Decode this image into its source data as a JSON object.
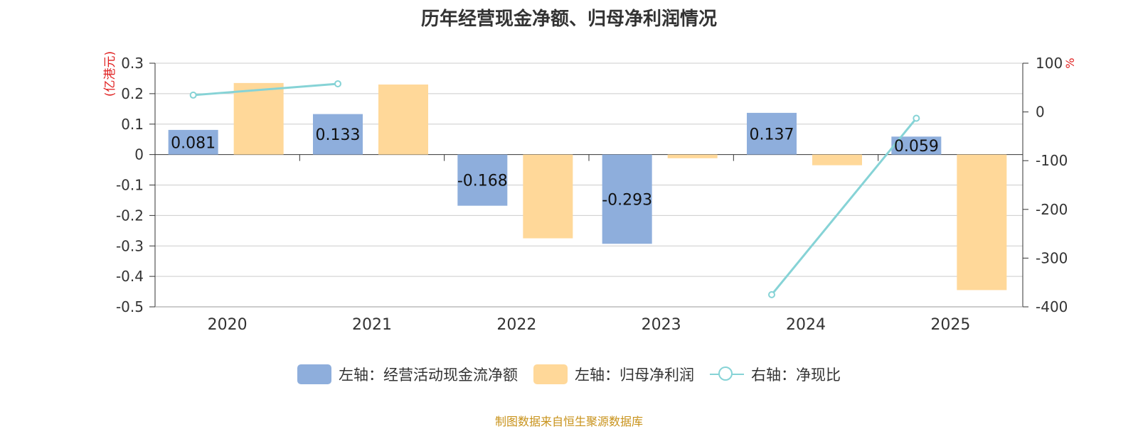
{
  "title": "历年经营现金净额、归母净利润情况",
  "source_note": "制图数据来自恒生聚源数据库",
  "legend": [
    {
      "label": "左轴：经营活动现金流净额",
      "color": "#8eaedc",
      "kind": "bar"
    },
    {
      "label": "左轴：归母净利润",
      "color": "#ffd899",
      "kind": "bar"
    },
    {
      "label": "右轴：净现比",
      "color": "#86d3d6",
      "kind": "line"
    }
  ],
  "chart_data": {
    "type": "bar",
    "categories": [
      "2020",
      "2021",
      "2022",
      "2023",
      "2024",
      "2025"
    ],
    "y_left_label": "(亿港元)",
    "y_right_label": "%",
    "y_left_ticks": [
      "0.3",
      "0.2",
      "0.1",
      "0",
      "-0.1",
      "-0.2",
      "-0.3",
      "-0.4",
      "-0.5"
    ],
    "y_right_ticks": [
      "100",
      "0",
      "-100",
      "-200",
      "-300",
      "-400"
    ],
    "ylim_left": [
      -0.5,
      0.3
    ],
    "ylim_right": [
      -400,
      100
    ],
    "grid": true,
    "legend_position": "bottom",
    "series": [
      {
        "name": "左轴：经营活动现金流净额",
        "axis": "left",
        "type": "bar",
        "color": "#8eaedc",
        "values": [
          0.081,
          0.133,
          -0.168,
          -0.293,
          0.137,
          0.059
        ],
        "labels": [
          "0.081",
          "0.133",
          "-0.168",
          "-0.293",
          "0.137",
          "0.059"
        ]
      },
      {
        "name": "左轴：归母净利润",
        "axis": "left",
        "type": "bar",
        "color": "#ffd899",
        "values": [
          0.235,
          0.23,
          -0.275,
          -0.012,
          -0.035,
          -0.445
        ]
      },
      {
        "name": "右轴：净现比",
        "axis": "right",
        "type": "line",
        "color": "#86d3d6",
        "values": [
          34.5,
          57.8,
          null,
          null,
          -375,
          -13
        ]
      }
    ]
  }
}
